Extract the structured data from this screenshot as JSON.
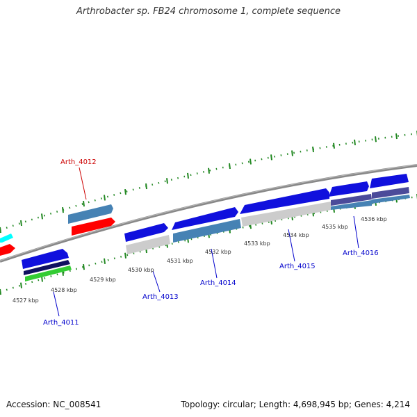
{
  "title": "Arthrobacter sp. FB24 chromosome 1, complete sequence",
  "footer": {
    "accession": "Accession: NC_008541",
    "topology": "Topology: circular; Length: 4,698,945 bp; Genes: 4,214"
  },
  "colors": {
    "backbone": "#888888",
    "tick": "#228822",
    "gene_blue": "#1010dd",
    "gene_steel": "#4682b4",
    "gene_red": "#ff0000",
    "gene_cyan": "#00ffff",
    "gene_gray": "#cccccc",
    "gene_navy": "#101060",
    "gene_green": "#33cc33",
    "gene_slate": "#4b4b9a",
    "label_red": "#cc0000",
    "label_blue": "#0000cc"
  },
  "scale_labels": [
    "4527 kbp",
    "4528 kbp",
    "4529 kbp",
    "4530 kbp",
    "4531 kbp",
    "4532 kbp",
    "4533 kbp",
    "4534 kbp",
    "4535 kbp",
    "4536 kbp"
  ],
  "gene_labels": [
    "Arth_4011",
    "Arth_4012",
    "Arth_4013",
    "Arth_4014",
    "Arth_4015",
    "Arth_4016"
  ],
  "chart_data": {
    "type": "genome_map",
    "track_range_kbp": [
      4527,
      4536
    ],
    "genes": [
      {
        "label": "Arth_4011",
        "label_color": "blue"
      },
      {
        "label": "Arth_4012",
        "label_color": "red"
      },
      {
        "label": "Arth_4013",
        "label_color": "blue"
      },
      {
        "label": "Arth_4014",
        "label_color": "blue"
      },
      {
        "label": "Arth_4015",
        "label_color": "blue"
      },
      {
        "label": "Arth_4016",
        "label_color": "blue"
      }
    ]
  }
}
